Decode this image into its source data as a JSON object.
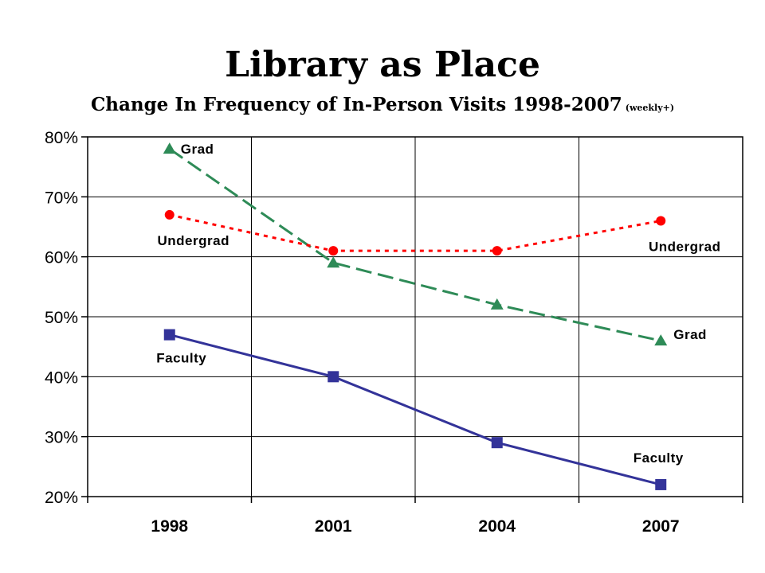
{
  "chart_data": {
    "type": "line",
    "title": "Library as Place",
    "subtitle": "Change In Frequency of In-Person Visits 1998-2007",
    "subtitle_note": "(weekly+)",
    "categories": [
      "1998",
      "2001",
      "2004",
      "2007"
    ],
    "ylim": [
      20,
      80
    ],
    "yticks": [
      "20%",
      "30%",
      "40%",
      "50%",
      "60%",
      "70%",
      "80%"
    ],
    "grid": true,
    "legend": "none",
    "series": [
      {
        "name": "Grad",
        "values": [
          78,
          59,
          52,
          46
        ],
        "color": "#2e8b57",
        "marker": "triangle",
        "dash": "dashed",
        "labels": [
          "Grad",
          "Grad"
        ]
      },
      {
        "name": "Undergrad",
        "values": [
          67,
          61,
          61,
          66
        ],
        "color": "#ff0000",
        "marker": "circle",
        "dash": "dotted",
        "labels": [
          "Undergrad",
          "Undergrad"
        ]
      },
      {
        "name": "Faculty",
        "values": [
          47,
          40,
          29,
          22
        ],
        "color": "#333399",
        "marker": "square",
        "dash": "solid",
        "labels": [
          "Faculty",
          "Faculty"
        ]
      }
    ]
  }
}
